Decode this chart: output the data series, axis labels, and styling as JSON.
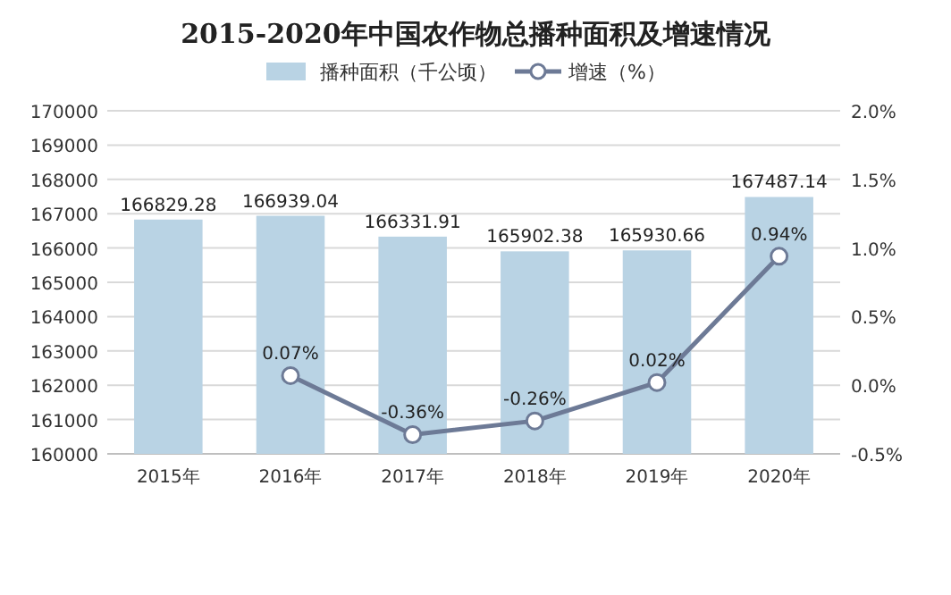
{
  "chart_data": {
    "type": "bar",
    "title": "2015-2020年中国农作物总播种面积及增速情况",
    "categories": [
      "2015年",
      "2016年",
      "2017年",
      "2018年",
      "2019年",
      "2020年"
    ],
    "series": [
      {
        "name": "播种面积（千公顷）",
        "color": "#b9d3e4",
        "values": [
          166829.28,
          166939.04,
          166331.91,
          165902.38,
          165930.66,
          167487.14
        ],
        "value_labels": [
          "166829.28",
          "166939.04",
          "166331.91",
          "165902.38",
          "165930.66",
          "167487.14"
        ]
      },
      {
        "name": "增速（%）",
        "type": "line",
        "axis": "y2",
        "color": "#6d7a96",
        "marker": "circle",
        "values": [
          null,
          0.07,
          -0.36,
          -0.26,
          0.02,
          0.94
        ],
        "value_labels": [
          null,
          "0.07%",
          "-0.36%",
          "-0.26%",
          "0.02%",
          "0.94%"
        ]
      }
    ],
    "ylim": [
      160000,
      170000
    ],
    "yticks": [
      160000,
      161000,
      162000,
      163000,
      164000,
      165000,
      166000,
      167000,
      168000,
      169000,
      170000
    ],
    "y2lim": [
      -0.5,
      2.0
    ],
    "y2ticks": [
      {
        "value": -0.5,
        "label": "-0.5%"
      },
      {
        "value": 0,
        "label": "0.0%"
      },
      {
        "value": 0.5,
        "label": "0.5%"
      },
      {
        "value": 1.0,
        "label": "1.0%"
      },
      {
        "value": 1.5,
        "label": "1.5%"
      },
      {
        "value": 2.0,
        "label": "2.0%"
      }
    ],
    "grid": "y",
    "legend": "top"
  }
}
